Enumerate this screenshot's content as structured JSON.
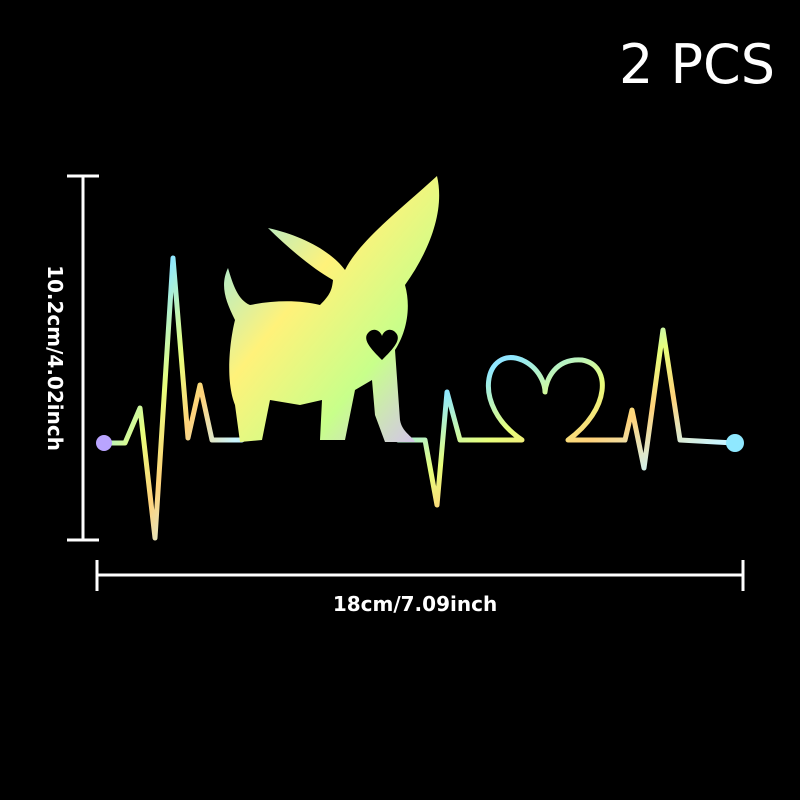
{
  "badge": {
    "quantity_label": "2 PCS"
  },
  "dimensions": {
    "height_label": "10.2cm/4.02inch",
    "width_label": "18cm/7.09inch"
  },
  "product": {
    "subject": "chihuahua heartbeat holographic sticker",
    "colors": {
      "background": "#000000",
      "text": "#ffffff",
      "holo": [
        "#b9a4ff",
        "#8fe8ff",
        "#e8ff7a",
        "#ffd27a",
        "#c9f5ff"
      ]
    }
  }
}
